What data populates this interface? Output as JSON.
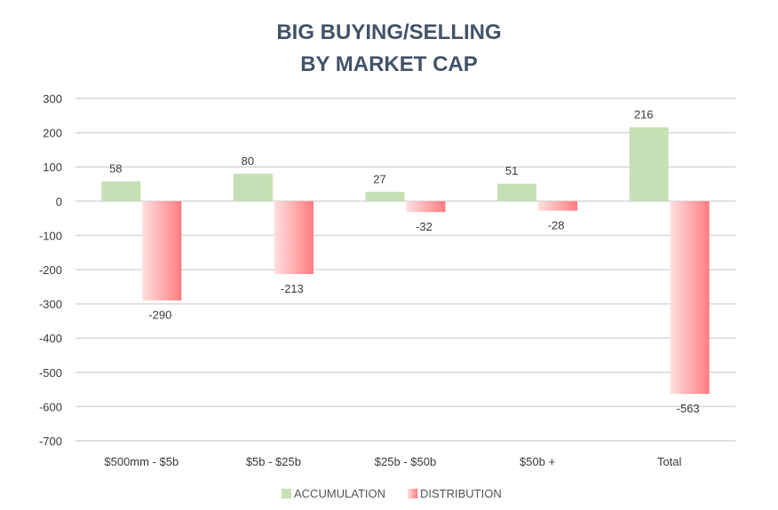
{
  "chart_data": {
    "type": "bar",
    "title_line1": "BIG BUYING/SELLING",
    "title_line2": "BY MARKET CAP",
    "categories": [
      "$500mm - $5b",
      "$5b - $25b",
      "$25b - $50b",
      "$50b +",
      "Total"
    ],
    "series": [
      {
        "name": "ACCUMULATION",
        "values": [
          58,
          80,
          27,
          51,
          216
        ],
        "color": "#c5e0b4"
      },
      {
        "name": "DISTRIBUTION",
        "values": [
          -290,
          -213,
          -32,
          -28,
          -563
        ],
        "color": "#ff7c80"
      }
    ],
    "data_labels": {
      "ACCUMULATION": [
        "58",
        "80",
        "27",
        "51",
        "216"
      ],
      "DISTRIBUTION": [
        "-290",
        "-213",
        "-32",
        "-28",
        "-563"
      ]
    },
    "y_ticks": [
      "300",
      "200",
      "100",
      "0",
      "-100",
      "-200",
      "-300",
      "-400",
      "-500",
      "-600",
      "-700"
    ],
    "y_tick_values": [
      300,
      200,
      100,
      0,
      -100,
      -200,
      -300,
      -400,
      -500,
      -600,
      -700
    ],
    "ylim": [
      -700,
      300
    ],
    "grid": true,
    "legend_position": "bottom"
  }
}
